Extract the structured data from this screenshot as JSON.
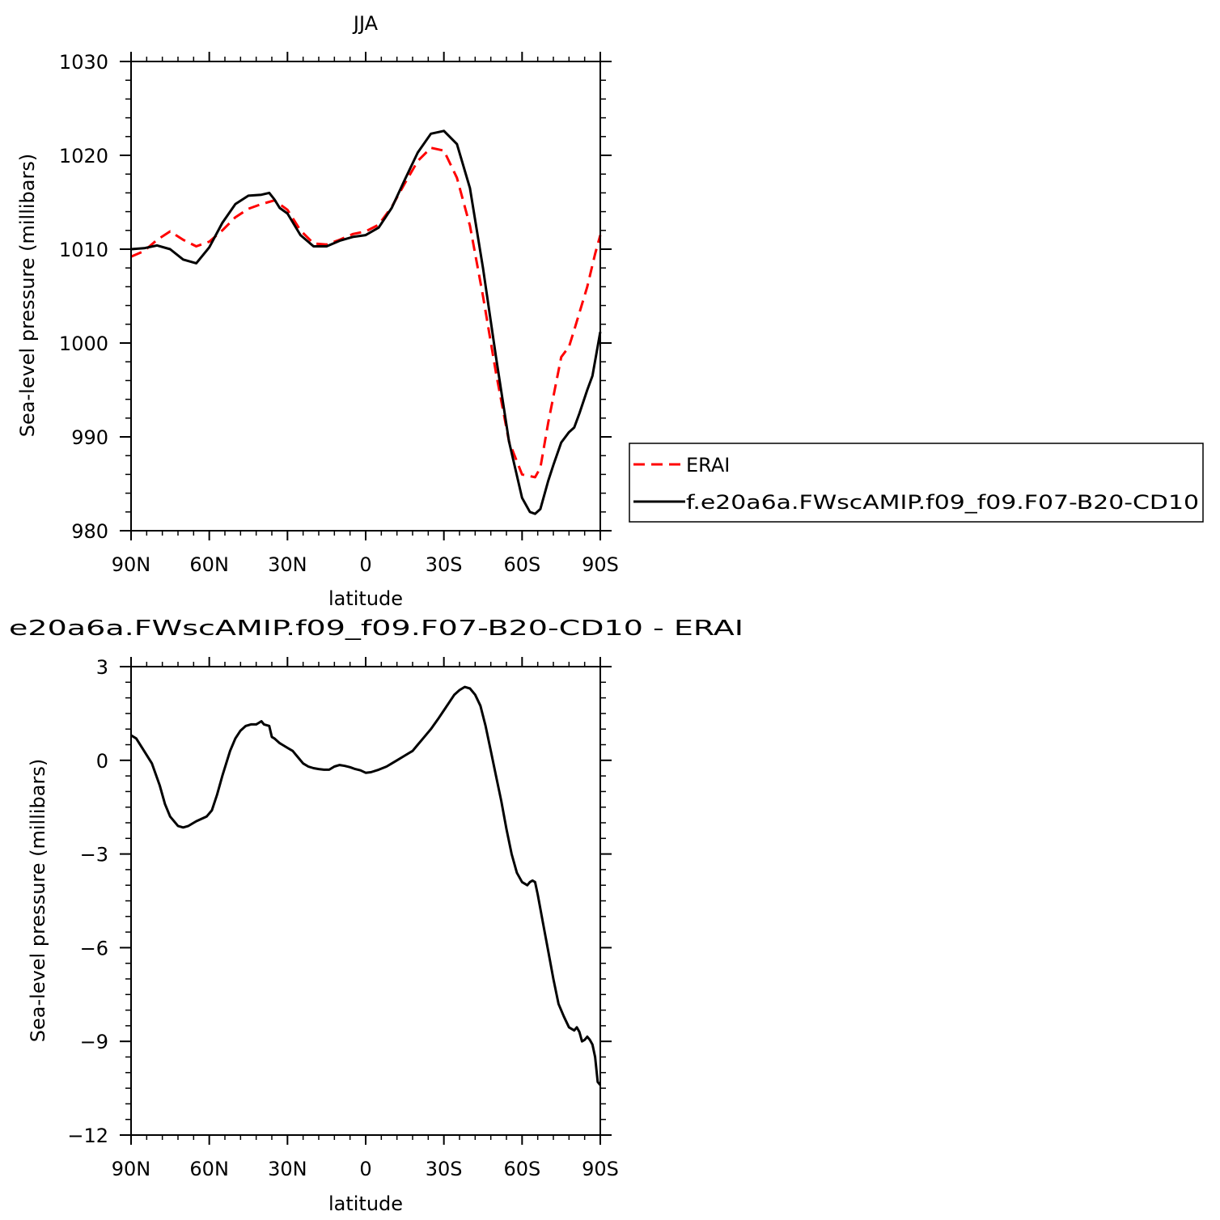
{
  "chart_data": [
    {
      "type": "line",
      "title": "JJA",
      "xlabel": "latitude",
      "ylabel": "Sea-level pressure (millibars)",
      "xlim": [
        90,
        -90
      ],
      "ylim": [
        980,
        1030
      ],
      "xticks": [
        90,
        60,
        30,
        0,
        -30,
        -60,
        -90
      ],
      "xticklabels": [
        "90N",
        "60N",
        "30N",
        "0",
        "30S",
        "60S",
        "90S"
      ],
      "yticks": [
        980,
        990,
        1000,
        1010,
        1020,
        1030
      ],
      "yticklabels": [
        "980",
        "990",
        "1000",
        "1010",
        "1020",
        "1030"
      ],
      "grid": false,
      "legend": "right",
      "series": [
        {
          "name": "ERAI",
          "color": "#ff0000",
          "dash": "dashed",
          "x": [
            90,
            85,
            80,
            75,
            70,
            65,
            60,
            55,
            50,
            45,
            40,
            35,
            30,
            25,
            20,
            15,
            10,
            5,
            0,
            -5,
            -10,
            -15,
            -20,
            -25,
            -30,
            -35,
            -40,
            -45,
            -50,
            -55,
            -60,
            -65,
            -67,
            -70,
            -75,
            -78,
            -80,
            -85,
            -88,
            -90
          ],
          "y": [
            1009.2,
            1009.8,
            1011.0,
            1011.9,
            1011.0,
            1010.3,
            1010.8,
            1012.0,
            1013.4,
            1014.3,
            1014.8,
            1015.2,
            1014.2,
            1012.0,
            1010.6,
            1010.5,
            1011.0,
            1011.6,
            1011.9,
            1012.6,
            1014.5,
            1017.0,
            1019.4,
            1020.8,
            1020.5,
            1017.6,
            1012.5,
            1005.0,
            996.8,
            989.5,
            986.0,
            985.7,
            986.7,
            991.5,
            998.5,
            999.6,
            1001.4,
            1006.0,
            1009.5,
            1011.5
          ]
        },
        {
          "name": "f.e20a6a.FWscAMIP.f09_f09.F07-B20-CD10",
          "color": "#000000",
          "dash": "solid",
          "x": [
            90,
            85,
            80,
            75,
            70,
            65,
            60,
            55,
            50,
            45,
            40,
            37,
            35,
            33,
            30,
            25,
            20,
            15,
            10,
            5,
            0,
            -5,
            -10,
            -15,
            -20,
            -25,
            -30,
            -35,
            -40,
            -45,
            -50,
            -55,
            -60,
            -63,
            -65,
            -67,
            -70,
            -72,
            -75,
            -78,
            -80,
            -82,
            -85,
            -87,
            -90
          ],
          "y": [
            1010.0,
            1010.1,
            1010.4,
            1010.0,
            1008.9,
            1008.5,
            1010.2,
            1012.8,
            1014.8,
            1015.7,
            1015.8,
            1016.0,
            1015.3,
            1014.4,
            1013.8,
            1011.5,
            1010.3,
            1010.3,
            1010.9,
            1011.3,
            1011.5,
            1012.3,
            1014.4,
            1017.4,
            1020.3,
            1022.3,
            1022.6,
            1021.2,
            1016.5,
            1008.0,
            998.5,
            989.5,
            983.5,
            982.0,
            981.8,
            982.3,
            985.3,
            987.0,
            989.4,
            990.5,
            991.0,
            992.5,
            995.0,
            996.5,
            1001.2
          ]
        }
      ]
    },
    {
      "type": "line",
      "title": "e20a6a.FWscAMIP.f09_f09.F07-B20-CD10 - ERAI",
      "xlabel": "latitude",
      "ylabel": "Sea-level pressure (millibars)",
      "xlim": [
        90,
        -90
      ],
      "ylim": [
        -12,
        3
      ],
      "xticks": [
        90,
        60,
        30,
        0,
        -30,
        -60,
        -90
      ],
      "xticklabels": [
        "90N",
        "60N",
        "30N",
        "0",
        "30S",
        "60S",
        "90S"
      ],
      "yticks": [
        -12,
        -9,
        -6,
        -3,
        0,
        3
      ],
      "yticklabels": [
        "-12",
        "-9",
        "-6",
        "-3",
        "0",
        "3"
      ],
      "grid": false,
      "series": [
        {
          "color": "#000000",
          "dash": "solid",
          "x": [
            90,
            88,
            85,
            82,
            79,
            77,
            75,
            72,
            70,
            68,
            65,
            61,
            59,
            57,
            55,
            52,
            50,
            48,
            46,
            44,
            42,
            41,
            40,
            39,
            37,
            36,
            35,
            33,
            32,
            30,
            28,
            27,
            26,
            24,
            22,
            20,
            18,
            16,
            14,
            12,
            10,
            8,
            6,
            4,
            2,
            0,
            -2,
            -5,
            -8,
            -10,
            -12,
            -15,
            -18,
            -20,
            -22,
            -25,
            -28,
            -30,
            -32,
            -34,
            -36,
            -38,
            -40,
            -42,
            -44,
            -46,
            -48,
            -50,
            -52,
            -54,
            -56,
            -58,
            -60,
            -62,
            -63,
            -64,
            -65,
            -66,
            -68,
            -70,
            -72,
            -74,
            -76,
            -78,
            -79,
            -80,
            -81,
            -82,
            -83,
            -84,
            -85,
            -86,
            -87,
            -88,
            -89,
            -90
          ],
          "y": [
            0.8,
            0.7,
            0.3,
            -0.1,
            -0.8,
            -1.4,
            -1.8,
            -2.1,
            -2.15,
            -2.1,
            -1.95,
            -1.8,
            -1.6,
            -1.1,
            -0.5,
            0.3,
            0.7,
            0.95,
            1.1,
            1.15,
            1.15,
            1.2,
            1.25,
            1.15,
            1.1,
            0.75,
            0.7,
            0.55,
            0.5,
            0.4,
            0.3,
            0.2,
            0.1,
            -0.1,
            -0.2,
            -0.25,
            -0.28,
            -0.3,
            -0.3,
            -0.2,
            -0.15,
            -0.18,
            -0.22,
            -0.28,
            -0.32,
            -0.4,
            -0.38,
            -0.3,
            -0.2,
            -0.1,
            0.0,
            0.15,
            0.3,
            0.5,
            0.7,
            1.0,
            1.35,
            1.6,
            1.85,
            2.1,
            2.25,
            2.35,
            2.3,
            2.1,
            1.75,
            1.1,
            0.3,
            -0.5,
            -1.3,
            -2.2,
            -3.0,
            -3.6,
            -3.9,
            -4.0,
            -3.9,
            -3.85,
            -3.9,
            -4.3,
            -5.2,
            -6.1,
            -7.0,
            -7.8,
            -8.2,
            -8.55,
            -8.6,
            -8.65,
            -8.55,
            -8.7,
            -9.0,
            -8.95,
            -8.85,
            -8.95,
            -9.1,
            -9.5,
            -10.3,
            -10.4
          ]
        }
      ]
    }
  ]
}
